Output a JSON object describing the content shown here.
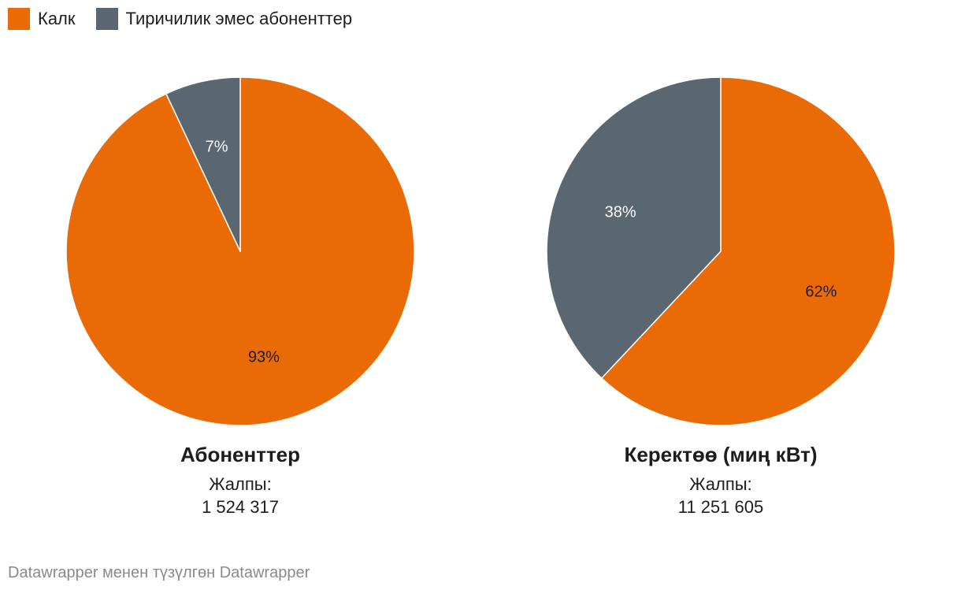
{
  "legend": [
    {
      "label": "Калк",
      "color": "#ea6a05"
    },
    {
      "label": "Тиричилик эмес абоненттер",
      "color": "#5a6670"
    }
  ],
  "chart_data": [
    {
      "type": "pie",
      "title": "Абоненттер",
      "subtitle_label": "Жалпы:",
      "subtitle_value": "1 524 317",
      "slices": [
        {
          "name": "Калк",
          "value": 93,
          "label": "93%",
          "color": "#ea6a05",
          "label_color": "#1d1d1d"
        },
        {
          "name": "Тиричилик эмес абоненттер",
          "value": 7,
          "label": "7%",
          "color": "#5a6670",
          "label_color": "#ffffff"
        }
      ]
    },
    {
      "type": "pie",
      "title": "Керектөө (миң кВт)",
      "subtitle_label": "Жалпы:",
      "subtitle_value": "11 251 605",
      "slices": [
        {
          "name": "Калк",
          "value": 62,
          "label": "62%",
          "color": "#ea6a05",
          "label_color": "#1d1d1d"
        },
        {
          "name": "Тиричилик эмес абоненттер",
          "value": 38,
          "label": "38%",
          "color": "#5a6670",
          "label_color": "#ffffff"
        }
      ]
    }
  ],
  "footer": "Datawrapper менен түзүлгөн Datawrapper"
}
